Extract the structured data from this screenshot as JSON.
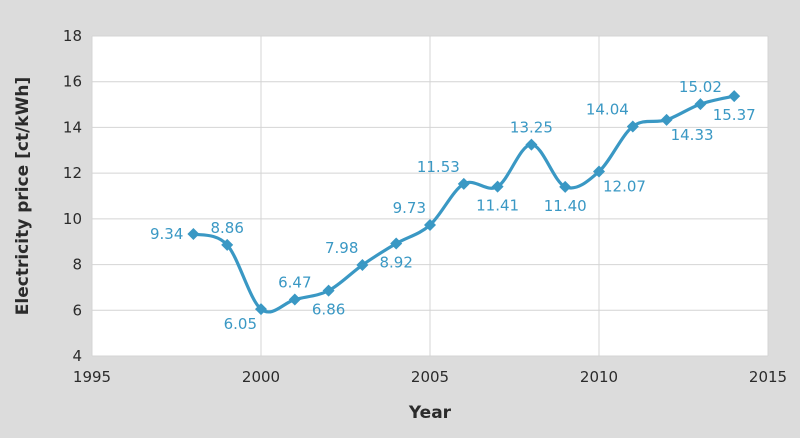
{
  "colors": {
    "background": "#dcdcdc",
    "plot_area": "#ffffff",
    "grid": "#d4d4d4",
    "series": "#3a98c4",
    "label": "#3a98c4"
  },
  "chart_data": {
    "type": "line",
    "xlabel": "Year",
    "ylabel": "Electricity price [ct/kWh]",
    "xlim": [
      1995,
      2015
    ],
    "ylim": [
      4,
      18
    ],
    "x_ticks": [
      1995,
      2000,
      2005,
      2010,
      2015
    ],
    "y_ticks": [
      4,
      6,
      8,
      10,
      12,
      14,
      16,
      18
    ],
    "grid": true,
    "smooth": true,
    "marker": "diamond",
    "series": [
      {
        "x": [
          1998,
          1999,
          2000,
          2001,
          2002,
          2003,
          2004,
          2005,
          2006,
          2007,
          2008,
          2009,
          2010,
          2011,
          2012,
          2013,
          2014
        ],
        "y": [
          9.34,
          8.86,
          6.05,
          6.47,
          6.86,
          7.98,
          8.92,
          9.73,
          11.53,
          11.41,
          13.25,
          11.4,
          12.07,
          14.04,
          14.33,
          15.02,
          15.37
        ],
        "labels": [
          "9.34",
          "8.86",
          "6.05",
          "6.47",
          "6.86",
          "7.98",
          "8.92",
          "9.73",
          "11.53",
          "11.41",
          "13.25",
          "11.40",
          "12.07",
          "14.04",
          "14.33",
          "15.02",
          "15.37"
        ],
        "label_positions": [
          "left",
          "above",
          "below-left",
          "above",
          "below",
          "above-left",
          "below",
          "above-left",
          "above-left",
          "below",
          "above",
          "below",
          "below-right",
          "above-left",
          "below-right",
          "above",
          "below"
        ]
      }
    ]
  }
}
